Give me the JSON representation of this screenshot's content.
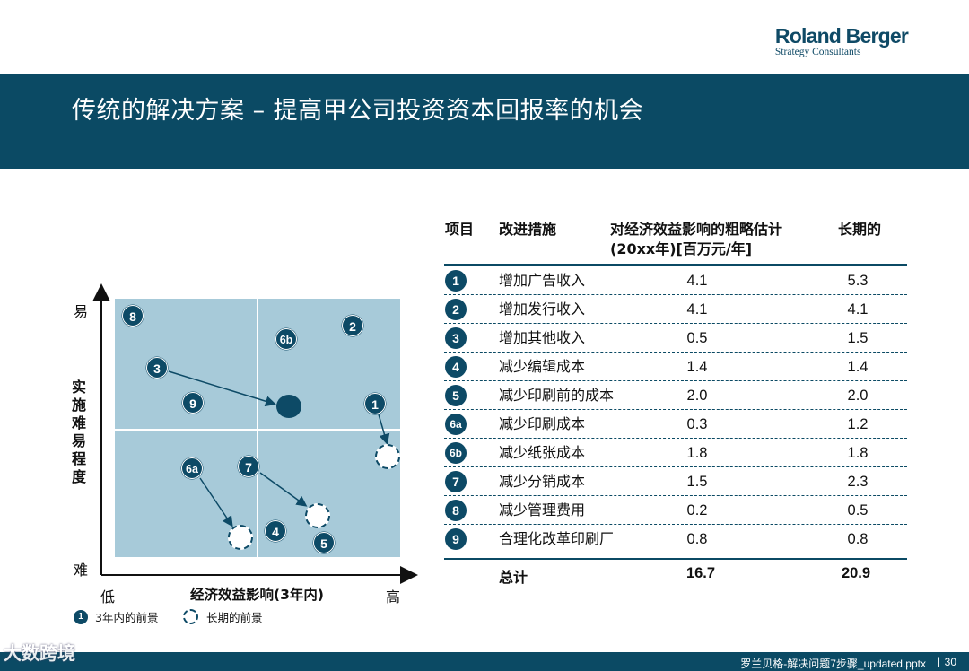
{
  "logo": {
    "main": "Roland Berger",
    "sub": "Strategy Consultants"
  },
  "title": "传统的解决方案 – 提高甲公司投资资本回报率的机会",
  "matrix": {
    "y_axis_label": "实施难易程度",
    "y_high": "易",
    "y_low": "难",
    "x_axis_label": "经济效益影响(3年内)",
    "x_low": "低",
    "x_high": "高",
    "badges": {
      "b8": "8",
      "b2": "2",
      "b6b": "6b",
      "b3": "3",
      "b9": "9",
      "b1": "1",
      "b6a": "6a",
      "b7": "7",
      "b4": "4",
      "b5": "5"
    },
    "legend": {
      "badge": "1",
      "current": "3年内的前景",
      "long_term": "长期的前景"
    }
  },
  "table": {
    "headers": {
      "item": "项目",
      "measure": "改进措施",
      "impact_line1": "对经济效益影响的粗略估计",
      "impact_line2": "(20xx年)[百万元/年]",
      "long_term": "长期的"
    },
    "rows": [
      {
        "id": "1",
        "name": "增加广告收入",
        "v3yr": "4.1",
        "vlong": "5.3"
      },
      {
        "id": "2",
        "name": "增加发行收入",
        "v3yr": "4.1",
        "vlong": "4.1"
      },
      {
        "id": "3",
        "name": "增加其他收入",
        "v3yr": "0.5",
        "vlong": "1.5"
      },
      {
        "id": "4",
        "name": "减少编辑成本",
        "v3yr": "1.4",
        "vlong": "1.4"
      },
      {
        "id": "5",
        "name": "减少印刷前的成本",
        "v3yr": "2.0",
        "vlong": "2.0"
      },
      {
        "id": "6a",
        "name": "减少印刷成本",
        "v3yr": "0.3",
        "vlong": "1.2"
      },
      {
        "id": "6b",
        "name": "减少纸张成本",
        "v3yr": "1.8",
        "vlong": "1.8"
      },
      {
        "id": "7",
        "name": "减少分销成本",
        "v3yr": "1.5",
        "vlong": "2.3"
      },
      {
        "id": "8",
        "name": "减少管理费用",
        "v3yr": "0.2",
        "vlong": "0.5"
      },
      {
        "id": "9",
        "name": "合理化改革印刷厂",
        "v3yr": "0.8",
        "vlong": "0.8"
      }
    ],
    "total": {
      "label": "总计",
      "v3yr": "16.7",
      "vlong": "20.9"
    }
  },
  "footer": {
    "file": "罗兰贝格-解决问题7步骤_updated.pptx",
    "separator": "|",
    "page": "30"
  },
  "watermark": "大数跨境",
  "colors": {
    "brand": "#0b4a64",
    "matrix_bg": "#a7cad9"
  }
}
